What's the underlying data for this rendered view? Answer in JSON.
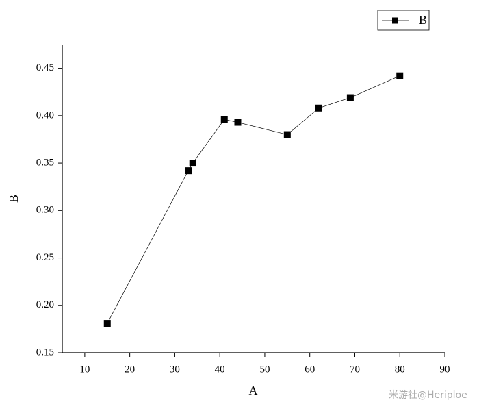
{
  "chart_data": {
    "type": "line",
    "x_label": "A",
    "y_label": "B",
    "x": [
      15,
      33,
      34,
      41,
      44,
      55,
      62,
      69,
      80
    ],
    "series": [
      {
        "name": "B",
        "color": "#000000",
        "values": [
          0.181,
          0.342,
          0.35,
          0.396,
          0.393,
          0.38,
          0.408,
          0.419,
          0.442
        ]
      }
    ],
    "xlim": [
      5,
      90
    ],
    "xticks": [
      10,
      20,
      30,
      40,
      50,
      60,
      70,
      80,
      90
    ],
    "ylim": [
      0.15,
      0.475
    ],
    "yticks": [
      0.15,
      {
        "value": 0.2,
        "label": "0.20"
      },
      0.25,
      {
        "value": 0.3,
        "label": "0.30"
      },
      0.35,
      {
        "value": 0.4,
        "label": "0.40"
      },
      0.45
    ],
    "legend": "upper right",
    "grid": false
  },
  "watermark": "米游社@Heriploe"
}
